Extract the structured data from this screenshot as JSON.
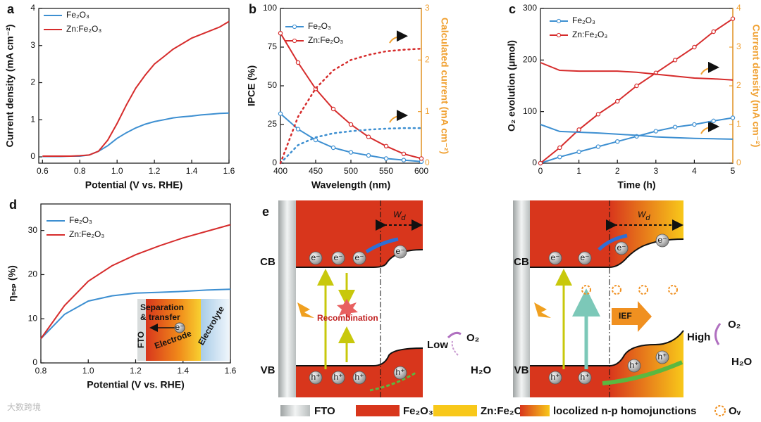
{
  "chart_data": [
    {
      "type": "line",
      "panel": "a",
      "xlabel": "Potential (V vs. RHE)",
      "ylabel": "Current density (mA cm⁻²)",
      "x": [
        0.6,
        0.65,
        0.7,
        0.75,
        0.8,
        0.85,
        0.9,
        0.95,
        1.0,
        1.05,
        1.1,
        1.15,
        1.2,
        1.25,
        1.3,
        1.35,
        1.4,
        1.45,
        1.5,
        1.55,
        1.6
      ],
      "series": [
        {
          "name": "Fe₂O₃",
          "color": "#3d8fd1",
          "values": [
            0.01,
            0.01,
            0.01,
            0.02,
            0.02,
            0.05,
            0.15,
            0.3,
            0.5,
            0.65,
            0.78,
            0.88,
            0.95,
            1.0,
            1.05,
            1.08,
            1.1,
            1.13,
            1.15,
            1.17,
            1.18
          ]
        },
        {
          "name": "Zn:Fe₂O₃",
          "color": "#d62c2c",
          "values": [
            0.02,
            0.02,
            0.02,
            0.02,
            0.03,
            0.05,
            0.15,
            0.45,
            0.9,
            1.4,
            1.85,
            2.2,
            2.5,
            2.7,
            2.9,
            3.05,
            3.2,
            3.3,
            3.4,
            3.5,
            3.65
          ]
        }
      ],
      "xlim": [
        0.58,
        1.6
      ],
      "xticks": [
        0.6,
        0.8,
        {
          "value": 1,
          "label": "1.0"
        },
        1.2,
        1.4,
        1.6
      ],
      "ylim": [
        -0.17,
        4
      ],
      "yticks": [
        0,
        1,
        2,
        3,
        4
      ]
    },
    {
      "type": "line",
      "panel": "b",
      "xlabel": "Wavelength (nm)",
      "ylabel": "IPCE (%)",
      "y2label": "Calculated current (mA cm⁻²)",
      "y2color": "#f0a030",
      "x": [
        400,
        425,
        450,
        475,
        500,
        525,
        550,
        575,
        600
      ],
      "series": [
        {
          "name": "Fe₂O₃",
          "color": "#3d8fd1",
          "markers": true,
          "values": [
            32,
            22,
            15,
            10,
            7,
            5,
            3,
            2,
            1
          ]
        },
        {
          "name": "Zn:Fe₂O₃",
          "color": "#d62c2c",
          "markers": true,
          "values": [
            84,
            65,
            48,
            35,
            25,
            17,
            11,
            6,
            3
          ]
        },
        {
          "color": "#3d8fd1",
          "dashed": true,
          "axis": "y2",
          "values": [
            0,
            0.35,
            0.5,
            0.58,
            0.62,
            0.65,
            0.67,
            0.68,
            0.68
          ]
        },
        {
          "color": "#d62c2c",
          "dashed": true,
          "axis": "y2",
          "values": [
            0,
            0.9,
            1.45,
            1.8,
            2.0,
            2.1,
            2.17,
            2.2,
            2.22
          ]
        }
      ],
      "xlim": [
        400,
        600
      ],
      "xticks": [
        400,
        450,
        500,
        550,
        600
      ],
      "ylim": [
        0,
        100
      ],
      "yticks": [
        0,
        25,
        50,
        75,
        100
      ],
      "y2lim": [
        0,
        3
      ],
      "y2ticks": [
        0,
        1,
        2,
        3
      ]
    },
    {
      "type": "line",
      "panel": "c",
      "xlabel": "Time (h)",
      "ylabel": "O₂ evolution (μmol)",
      "y2label": "Current density (mA cm⁻²)",
      "y2color": "#f0a030",
      "x": [
        0,
        0.5,
        1,
        1.5,
        2,
        2.5,
        3,
        3.5,
        4,
        4.5,
        5
      ],
      "series": [
        {
          "name": "Fe₂O₃",
          "color": "#3d8fd1",
          "markers": true,
          "values": [
            0,
            12,
            22,
            32,
            42,
            52,
            62,
            70,
            75,
            82,
            88
          ]
        },
        {
          "name": "Zn:Fe₂O₃",
          "color": "#d62c2c",
          "markers": true,
          "values": [
            0,
            30,
            65,
            95,
            120,
            150,
            175,
            200,
            225,
            255,
            280
          ]
        },
        {
          "color": "#3d8fd1",
          "axis": "y2",
          "values": [
            1.0,
            0.82,
            0.8,
            0.78,
            0.75,
            0.72,
            0.68,
            0.66,
            0.64,
            0.63,
            0.62
          ]
        },
        {
          "color": "#d62c2c",
          "axis": "y2",
          "values": [
            2.6,
            2.4,
            2.38,
            2.38,
            2.38,
            2.35,
            2.3,
            2.25,
            2.2,
            2.18,
            2.15
          ]
        }
      ],
      "xlim": [
        0,
        5
      ],
      "xticks": [
        0,
        1,
        2,
        3,
        4,
        5
      ],
      "ylim": [
        0,
        300
      ],
      "yticks": [
        0,
        100,
        200,
        300
      ],
      "y2lim": [
        0,
        4
      ],
      "y2ticks": [
        0,
        1,
        2,
        3,
        4
      ]
    },
    {
      "type": "line",
      "panel": "d",
      "xlabel": "Potential (V vs. RHE)",
      "ylabel": "ηₛₑₚ (%)",
      "x": [
        0.8,
        0.9,
        1.0,
        1.1,
        1.2,
        1.3,
        1.4,
        1.5,
        1.6
      ],
      "series": [
        {
          "name": "Fe₂O₃",
          "color": "#3d8fd1",
          "values": [
            5.5,
            11,
            14,
            15.2,
            15.8,
            16,
            16.2,
            16.5,
            16.7
          ]
        },
        {
          "name": "Zn:Fe₂O₃",
          "color": "#d62c2c",
          "values": [
            5.5,
            13,
            18.5,
            22,
            24.5,
            26.5,
            28.3,
            29.8,
            31.3
          ]
        }
      ],
      "xlim": [
        0.8,
        1.6
      ],
      "xticks": [
        0.8,
        {
          "value": 1,
          "label": "1.0"
        },
        1.2,
        1.4,
        1.6
      ],
      "ylim": [
        0,
        36
      ],
      "yticks": [
        0,
        10,
        20,
        30
      ],
      "inset": {
        "lines": [
          "Separation",
          "& transfer"
        ],
        "electron": "e⁻",
        "layers": [
          "FTO",
          "Electrode",
          "Electrolyte"
        ]
      }
    }
  ],
  "diagram": {
    "label": "e",
    "cb": "CB",
    "vb": "VB",
    "electron": "e⁻",
    "hole": "h⁺",
    "wd": "W",
    "wd_sub": "d",
    "recombination": "Recombination",
    "low": "Low",
    "high": "High",
    "o2": "O₂",
    "h2o": "H₂O",
    "ief": "IEF",
    "legend": [
      "FTO",
      "Fe₂O₃",
      "Zn:Fe₂O₃",
      "locolized n-p homojunctions",
      "Oᵥ"
    ]
  },
  "watermark": "大数跨境"
}
